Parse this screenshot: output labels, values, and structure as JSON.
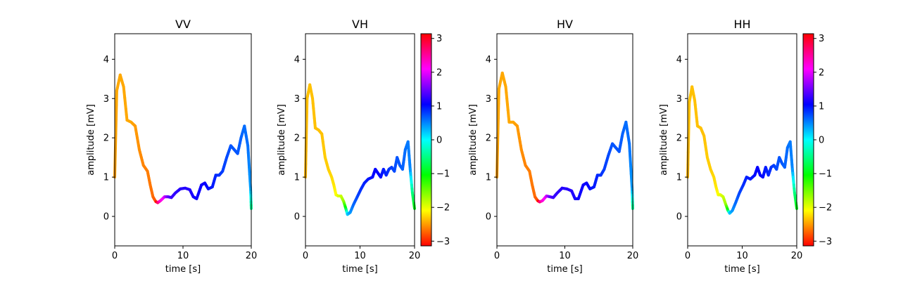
{
  "chart_data": [
    {
      "type": "line",
      "title": "VV",
      "xlabel": "time [s]",
      "ylabel": "amplitude [mV]",
      "xlim": [
        0,
        20
      ],
      "ylim": [
        -0.75,
        4.65
      ],
      "xticks": [
        "0",
        "10",
        "20"
      ],
      "yticks": [
        "0",
        "1",
        "2",
        "3",
        "4"
      ],
      "color_encoding": "phase",
      "colorbar": false,
      "x": [
        0,
        0.3,
        0.8,
        1.3,
        1.8,
        2.4,
        3.0,
        3.6,
        4.2,
        4.8,
        5.2,
        5.6,
        6.0,
        6.3,
        6.7,
        7.3,
        7.8,
        8.3,
        8.9,
        9.6,
        10.3,
        11.0,
        11.5,
        12.0,
        12.7,
        13.2,
        13.7,
        14.3,
        14.8,
        15.3,
        15.8,
        16.4,
        17.0,
        17.5,
        18.0,
        18.5,
        19.0,
        19.5,
        19.9,
        20.0
      ],
      "y": [
        1.0,
        3.2,
        3.6,
        3.3,
        2.45,
        2.4,
        2.3,
        1.7,
        1.3,
        1.15,
        0.8,
        0.5,
        0.38,
        0.35,
        0.4,
        0.5,
        0.5,
        0.48,
        0.6,
        0.7,
        0.72,
        0.68,
        0.5,
        0.45,
        0.8,
        0.85,
        0.7,
        0.75,
        1.05,
        1.05,
        1.15,
        1.5,
        1.8,
        1.7,
        1.6,
        2.0,
        2.3,
        1.8,
        0.7,
        0.2
      ],
      "phase": [
        -2.5,
        -2.45,
        -2.45,
        -2.45,
        -2.45,
        -2.45,
        -2.5,
        -2.55,
        -2.6,
        -2.62,
        -2.65,
        -2.7,
        -2.8,
        2.8,
        2.3,
        1.95,
        1.5,
        1.3,
        1.25,
        1.2,
        1.2,
        1.2,
        1.15,
        1.1,
        1.1,
        1.1,
        1.0,
        0.95,
        0.9,
        0.85,
        0.8,
        0.75,
        0.7,
        0.7,
        0.7,
        0.65,
        0.6,
        0.6,
        0.4,
        -0.5
      ]
    },
    {
      "type": "line",
      "title": "VH",
      "xlabel": "time [s]",
      "ylabel": "amplitude [mV]",
      "xlim": [
        0,
        20
      ],
      "ylim": [
        -0.75,
        4.65
      ],
      "xticks": [
        "0",
        "10",
        "20"
      ],
      "yticks": [
        "0",
        "1",
        "2",
        "3",
        "4"
      ],
      "color_encoding": "phase",
      "colorbar": true,
      "colorbar_ticks": [
        "3",
        "2",
        "1",
        "0",
        "−1",
        "−2",
        "−3"
      ],
      "colorbar_lim": [
        -3.14,
        3.14
      ],
      "x": [
        0,
        0.3,
        0.8,
        1.3,
        1.8,
        2.4,
        3.0,
        3.6,
        4.2,
        4.8,
        5.2,
        5.6,
        6.0,
        6.5,
        7.0,
        7.4,
        7.7,
        8.2,
        8.8,
        9.5,
        10.2,
        10.8,
        11.5,
        12.3,
        12.8,
        13.3,
        13.8,
        14.3,
        14.8,
        15.3,
        15.8,
        16.3,
        16.8,
        17.3,
        17.8,
        18.3,
        18.8,
        19.2,
        19.6,
        20.0
      ],
      "y": [
        1.0,
        3.0,
        3.35,
        3.0,
        2.25,
        2.2,
        2.1,
        1.5,
        1.2,
        1.0,
        0.8,
        0.55,
        0.52,
        0.52,
        0.38,
        0.2,
        0.05,
        0.1,
        0.3,
        0.5,
        0.7,
        0.85,
        0.95,
        1.0,
        1.2,
        1.1,
        1.0,
        1.2,
        1.05,
        1.2,
        1.25,
        1.15,
        1.5,
        1.3,
        1.2,
        1.7,
        1.9,
        1.2,
        0.6,
        0.2
      ],
      "phase": [
        -2.4,
        -2.35,
        -2.35,
        -2.35,
        -2.35,
        -2.35,
        -2.35,
        -2.3,
        -2.3,
        -2.25,
        -2.2,
        -2.1,
        -2.0,
        -1.9,
        -1.7,
        -1.0,
        0.2,
        0.4,
        0.6,
        0.75,
        0.85,
        0.9,
        0.95,
        1.0,
        1.05,
        1.05,
        1.0,
        0.95,
        0.9,
        0.85,
        0.8,
        0.75,
        0.7,
        0.7,
        0.65,
        0.6,
        0.55,
        0.5,
        -0.5,
        -1.0
      ]
    },
    {
      "type": "line",
      "title": "HV",
      "xlabel": "time [s]",
      "ylabel": "amplitude [mV]",
      "xlim": [
        0,
        20
      ],
      "ylim": [
        -0.75,
        4.65
      ],
      "xticks": [
        "0",
        "10",
        "20"
      ],
      "yticks": [
        "0",
        "1",
        "2",
        "3",
        "4"
      ],
      "color_encoding": "phase",
      "colorbar": false,
      "x": [
        0,
        0.3,
        0.8,
        1.3,
        1.8,
        2.4,
        3.0,
        3.6,
        4.2,
        4.8,
        5.2,
        5.6,
        6.0,
        6.3,
        6.7,
        7.3,
        7.8,
        8.3,
        8.9,
        9.6,
        10.3,
        11.0,
        11.5,
        12.0,
        12.7,
        13.2,
        13.7,
        14.3,
        14.8,
        15.3,
        15.8,
        16.4,
        17.0,
        17.5,
        18.0,
        18.5,
        19.0,
        19.5,
        19.9,
        20.0
      ],
      "y": [
        1.0,
        3.25,
        3.65,
        3.3,
        2.4,
        2.4,
        2.3,
        1.7,
        1.3,
        1.15,
        0.8,
        0.5,
        0.4,
        0.37,
        0.4,
        0.52,
        0.5,
        0.48,
        0.6,
        0.72,
        0.7,
        0.65,
        0.45,
        0.45,
        0.8,
        0.85,
        0.7,
        0.75,
        1.05,
        1.05,
        1.2,
        1.55,
        1.85,
        1.75,
        1.65,
        2.1,
        2.4,
        1.85,
        0.7,
        0.2
      ],
      "phase": [
        -2.5,
        -2.45,
        -2.45,
        -2.45,
        -2.45,
        -2.45,
        -2.5,
        -2.55,
        -2.6,
        -2.62,
        -2.65,
        -2.7,
        -2.8,
        2.8,
        2.3,
        1.95,
        1.5,
        1.3,
        1.25,
        1.2,
        1.2,
        1.2,
        1.15,
        1.1,
        1.1,
        1.1,
        1.0,
        0.95,
        0.9,
        0.85,
        0.8,
        0.75,
        0.7,
        0.7,
        0.7,
        0.65,
        0.6,
        0.6,
        0.4,
        -0.5
      ]
    },
    {
      "type": "line",
      "title": "HH",
      "xlabel": "time [s]",
      "ylabel": "amplitude [mV]",
      "xlim": [
        0,
        20
      ],
      "ylim": [
        -0.75,
        4.65
      ],
      "xticks": [
        "0",
        "10",
        "20"
      ],
      "yticks": [
        "0",
        "1",
        "2",
        "3",
        "4"
      ],
      "color_encoding": "phase",
      "colorbar": true,
      "colorbar_ticks": [
        "3",
        "2",
        "1",
        "0",
        "−1",
        "−2",
        "−3"
      ],
      "colorbar_lim": [
        -3.14,
        3.14
      ],
      "x": [
        0,
        0.3,
        0.8,
        1.3,
        1.8,
        2.4,
        3.0,
        3.6,
        4.2,
        4.8,
        5.2,
        5.6,
        6.0,
        6.5,
        7.0,
        7.4,
        7.7,
        8.2,
        8.8,
        9.5,
        10.2,
        10.8,
        11.5,
        12.3,
        12.8,
        13.3,
        13.8,
        14.3,
        14.8,
        15.3,
        15.8,
        16.3,
        16.8,
        17.3,
        17.8,
        18.3,
        18.8,
        19.2,
        19.6,
        20.0
      ],
      "y": [
        1.0,
        2.9,
        3.3,
        2.95,
        2.3,
        2.25,
        2.05,
        1.5,
        1.2,
        1.0,
        0.75,
        0.55,
        0.55,
        0.5,
        0.3,
        0.15,
        0.08,
        0.15,
        0.35,
        0.6,
        0.8,
        1.0,
        0.95,
        1.05,
        1.25,
        1.05,
        1.0,
        1.25,
        1.05,
        1.25,
        1.3,
        1.2,
        1.5,
        1.35,
        1.25,
        1.75,
        1.9,
        1.2,
        0.6,
        0.2
      ],
      "phase": [
        -2.4,
        -2.35,
        -2.35,
        -2.35,
        -2.35,
        -2.35,
        -2.35,
        -2.3,
        -2.3,
        -2.25,
        -2.2,
        -2.1,
        -2.0,
        -1.9,
        -1.7,
        -1.0,
        0.2,
        0.4,
        0.6,
        0.75,
        0.85,
        0.9,
        0.95,
        1.0,
        1.05,
        1.05,
        1.0,
        0.95,
        0.9,
        0.85,
        0.8,
        0.75,
        0.7,
        0.7,
        0.65,
        0.6,
        0.55,
        0.5,
        -0.5,
        -1.0
      ]
    }
  ]
}
